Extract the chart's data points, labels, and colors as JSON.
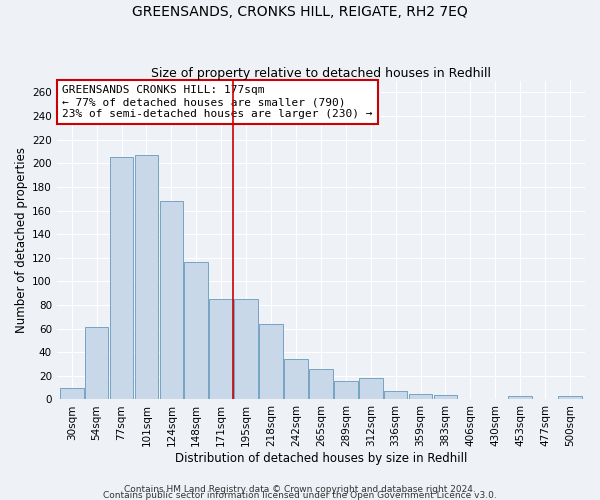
{
  "title": "GREENSANDS, CRONKS HILL, REIGATE, RH2 7EQ",
  "subtitle": "Size of property relative to detached houses in Redhill",
  "xlabel": "Distribution of detached houses by size in Redhill",
  "ylabel": "Number of detached properties",
  "categories": [
    "30sqm",
    "54sqm",
    "77sqm",
    "101sqm",
    "124sqm",
    "148sqm",
    "171sqm",
    "195sqm",
    "218sqm",
    "242sqm",
    "265sqm",
    "289sqm",
    "312sqm",
    "336sqm",
    "359sqm",
    "383sqm",
    "406sqm",
    "430sqm",
    "453sqm",
    "477sqm",
    "500sqm"
  ],
  "values": [
    10,
    61,
    205,
    207,
    168,
    116,
    85,
    85,
    64,
    34,
    26,
    16,
    18,
    7,
    5,
    4,
    0,
    0,
    3,
    0,
    3
  ],
  "bar_color": "#c8d8e8",
  "bar_edge_color": "#6699bb",
  "annotation_line1": "GREENSANDS CRONKS HILL: 177sqm",
  "annotation_line2": "← 77% of detached houses are smaller (790)",
  "annotation_line3": "23% of semi-detached houses are larger (230) →",
  "vline_color": "#cc0000",
  "annotation_box_edgecolor": "#cc0000",
  "ylim": [
    0,
    270
  ],
  "yticks": [
    0,
    20,
    40,
    60,
    80,
    100,
    120,
    140,
    160,
    180,
    200,
    220,
    240,
    260
  ],
  "footer_line1": "Contains HM Land Registry data © Crown copyright and database right 2024.",
  "footer_line2": "Contains public sector information licensed under the Open Government Licence v3.0.",
  "background_color": "#eef2f7",
  "title_fontsize": 10,
  "subtitle_fontsize": 9,
  "axis_label_fontsize": 8.5,
  "tick_fontsize": 7.5,
  "footer_fontsize": 6.5,
  "annotation_fontsize": 8
}
